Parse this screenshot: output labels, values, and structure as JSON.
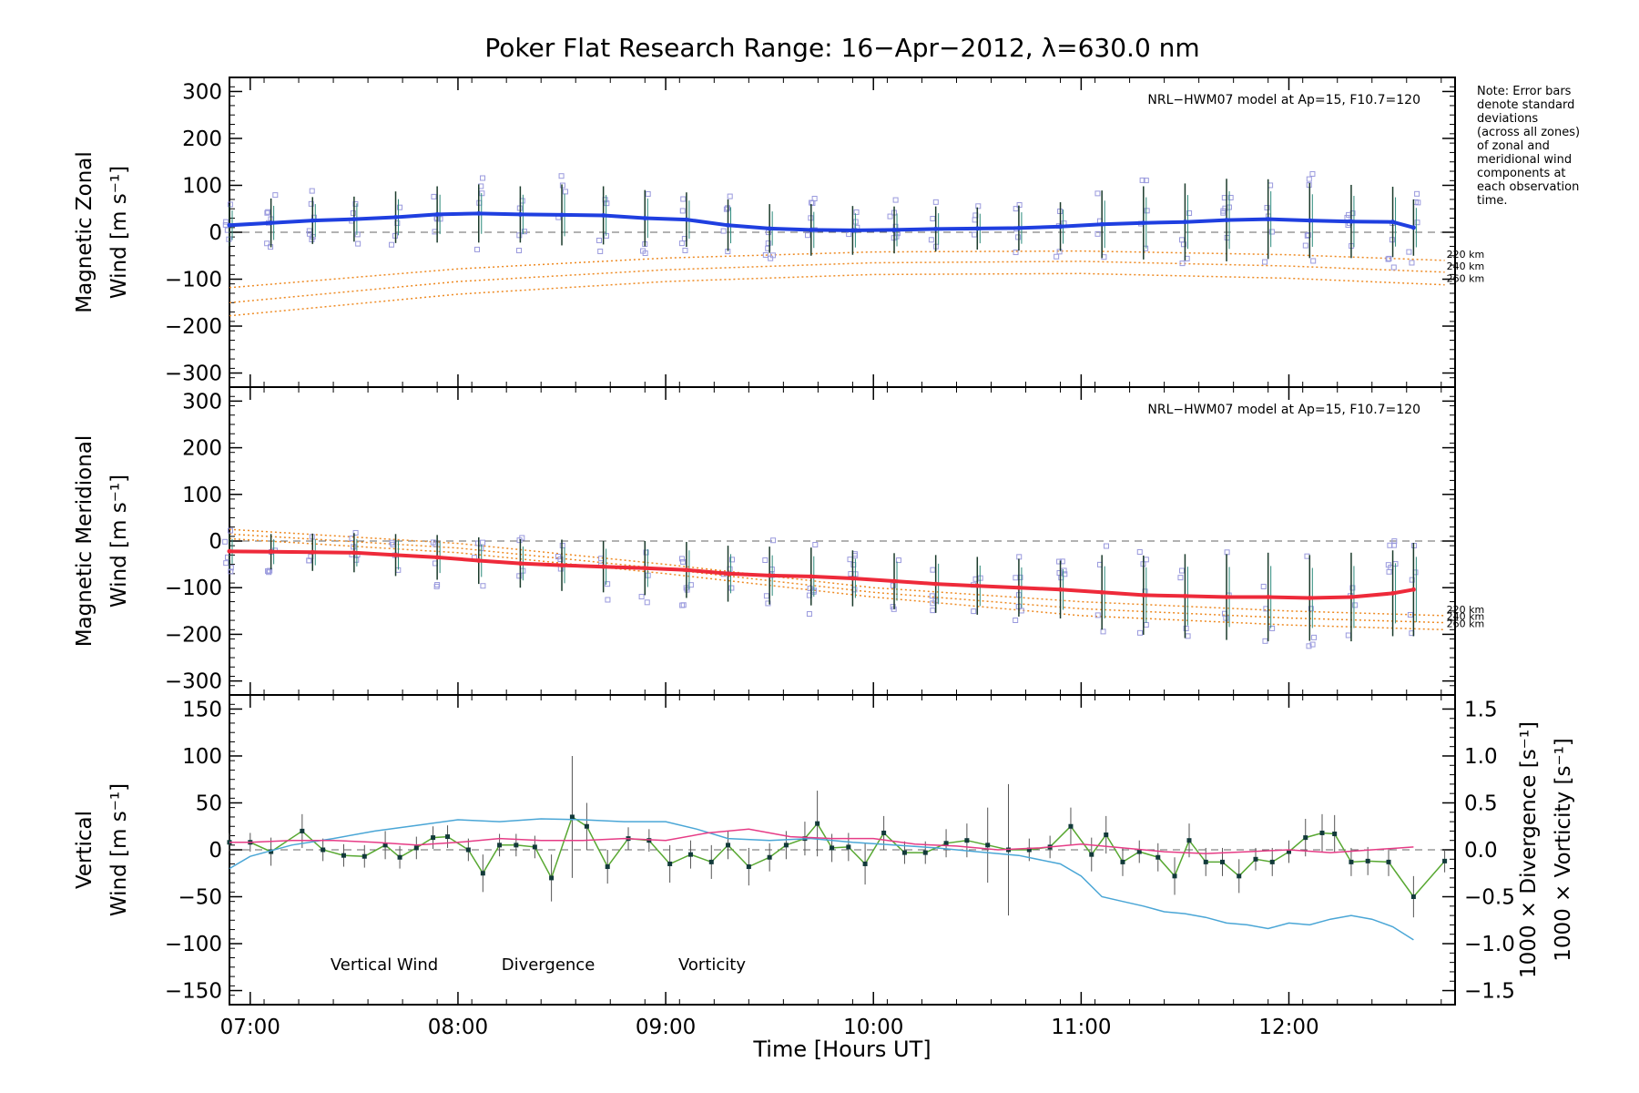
{
  "title": "Poker Flat Research Range: 16−Apr−2012, λ=630.0 nm",
  "note_lines": [
    "Note: Error bars",
    "denote standard",
    "deviations",
    "(across all zones)",
    "of zonal and",
    "meridional wind",
    "components at",
    "each observation",
    "time."
  ],
  "xlabel": "Time [Hours UT]",
  "xticks": [
    {
      "t": 7.0,
      "label": "07:00"
    },
    {
      "t": 8.0,
      "label": "08:00"
    },
    {
      "t": 9.0,
      "label": "09:00"
    },
    {
      "t": 10.0,
      "label": "10:00"
    },
    {
      "t": 11.0,
      "label": "11:00"
    },
    {
      "t": 12.0,
      "label": "12:00"
    }
  ],
  "colors": {
    "zonal": "#1f3fe0",
    "meridional": "#ee2a3a",
    "vertical": "#58a832",
    "divergence": "#4aa6d6",
    "vorticity": "#e63c86",
    "model": "#ee8a22",
    "samples": "#9999dd"
  },
  "chart_data": [
    {
      "type": "line",
      "id": "zonal",
      "ylabel_lines": [
        "Magnetic Zonal",
        "Wind [m s⁻¹]"
      ],
      "ylim": [
        -330,
        330
      ],
      "yticks": [
        -300,
        -200,
        -100,
        0,
        100,
        200,
        300
      ],
      "xlim": [
        6.9,
        12.8
      ],
      "model_label": "NRL−HWM07 model at Ap=15, F10.7=120",
      "model_curves": [
        {
          "name": "220 km",
          "x": [
            6.9,
            8.0,
            9.0,
            10.0,
            11.0,
            12.0,
            12.75
          ],
          "values": [
            -118,
            -78,
            -55,
            -42,
            -40,
            -48,
            -60
          ]
        },
        {
          "name": "240 km",
          "x": [
            6.9,
            8.0,
            9.0,
            10.0,
            11.0,
            12.0,
            12.75
          ],
          "values": [
            -150,
            -105,
            -80,
            -65,
            -62,
            -72,
            -85
          ]
        },
        {
          "name": "260 km",
          "x": [
            6.9,
            8.0,
            9.0,
            10.0,
            11.0,
            12.0,
            12.75
          ],
          "values": [
            -178,
            -132,
            -105,
            -90,
            -88,
            -98,
            -112
          ]
        }
      ],
      "series": [
        {
          "name": "zonal",
          "x": [
            6.9,
            7.1,
            7.3,
            7.5,
            7.7,
            7.9,
            8.1,
            8.3,
            8.5,
            8.7,
            8.9,
            9.1,
            9.3,
            9.5,
            9.7,
            9.9,
            10.1,
            10.3,
            10.5,
            10.7,
            10.9,
            11.1,
            11.3,
            11.5,
            11.7,
            11.9,
            12.1,
            12.3,
            12.5,
            12.6
          ],
          "values": [
            15,
            20,
            25,
            28,
            32,
            38,
            40,
            38,
            37,
            36,
            30,
            27,
            15,
            8,
            5,
            4,
            5,
            7,
            8,
            9,
            12,
            17,
            20,
            22,
            26,
            28,
            25,
            23,
            22,
            10
          ],
          "errors": [
            45,
            52,
            50,
            48,
            55,
            60,
            62,
            60,
            65,
            62,
            60,
            58,
            55,
            52,
            55,
            52,
            50,
            48,
            45,
            48,
            52,
            72,
            78,
            82,
            88,
            85,
            80,
            78,
            75,
            60
          ]
        }
      ]
    },
    {
      "type": "line",
      "id": "meridional",
      "ylabel_lines": [
        "Magnetic Meridional",
        "Wind [m s⁻¹]"
      ],
      "ylim": [
        -330,
        330
      ],
      "yticks": [
        -300,
        -200,
        -100,
        0,
        100,
        200,
        300
      ],
      "xlim": [
        6.9,
        12.8
      ],
      "model_label": "NRL−HWM07 model at Ap=15, F10.7=120",
      "model_curves": [
        {
          "name": "220 km",
          "x": [
            6.9,
            8.0,
            9.0,
            10.0,
            11.0,
            12.0,
            12.75
          ],
          "values": [
            25,
            -5,
            -50,
            -100,
            -130,
            -150,
            -160
          ]
        },
        {
          "name": "240 km",
          "x": [
            6.9,
            8.0,
            9.0,
            10.0,
            11.0,
            12.0,
            12.75
          ],
          "values": [
            15,
            -15,
            -60,
            -110,
            -145,
            -165,
            -175
          ]
        },
        {
          "name": "260 km",
          "x": [
            6.9,
            8.0,
            9.0,
            10.0,
            11.0,
            12.0,
            12.75
          ],
          "values": [
            5,
            -25,
            -70,
            -120,
            -160,
            -180,
            -190
          ]
        }
      ],
      "series": [
        {
          "name": "meridional",
          "x": [
            6.9,
            7.1,
            7.3,
            7.5,
            7.7,
            7.9,
            8.1,
            8.3,
            8.5,
            8.7,
            8.9,
            9.1,
            9.3,
            9.5,
            9.7,
            9.9,
            10.1,
            10.3,
            10.5,
            10.7,
            10.9,
            11.1,
            11.3,
            11.5,
            11.7,
            11.9,
            12.1,
            12.3,
            12.5,
            12.6
          ],
          "values": [
            -22,
            -23,
            -24,
            -25,
            -30,
            -35,
            -42,
            -48,
            -52,
            -55,
            -58,
            -62,
            -70,
            -74,
            -76,
            -80,
            -86,
            -92,
            -96,
            -100,
            -104,
            -110,
            -116,
            -118,
            -120,
            -120,
            -122,
            -120,
            -112,
            -104
          ],
          "errors": [
            38,
            38,
            40,
            42,
            45,
            48,
            50,
            52,
            55,
            55,
            58,
            60,
            60,
            62,
            62,
            60,
            60,
            62,
            62,
            62,
            62,
            80,
            85,
            90,
            92,
            95,
            92,
            95,
            92,
            100
          ]
        }
      ]
    },
    {
      "type": "line",
      "id": "vertical",
      "ylabel_lines": [
        "Vertical",
        "Wind [m s⁻¹]"
      ],
      "right_ylabel_divergence": "1000 × Divergence [s⁻¹]",
      "right_ylabel_vorticity": "1000 × Vorticity [s⁻¹]",
      "ylim": [
        -165,
        165
      ],
      "yticks": [
        -150,
        -100,
        -50,
        0,
        50,
        100,
        150
      ],
      "y2lim": [
        -1.65,
        1.65
      ],
      "y2ticks": [
        -1.5,
        -1.0,
        -0.5,
        0.0,
        0.5,
        1.0,
        1.5
      ],
      "y2ticklabels": [
        "−1.5",
        "−1.0",
        "−0.5",
        "0.0",
        "0.5",
        "1.0",
        "1.5"
      ],
      "xlim": [
        6.9,
        12.8
      ],
      "legend": [
        {
          "name": "Vertical Wind",
          "key": "vertical"
        },
        {
          "name": "Divergence",
          "key": "divergence"
        },
        {
          "name": "Vorticity",
          "key": "vorticity"
        }
      ],
      "series": [
        {
          "name": "Vertical Wind",
          "key": "vertical",
          "axis": "left",
          "x": [
            6.9,
            7.0,
            7.1,
            7.25,
            7.35,
            7.45,
            7.55,
            7.65,
            7.72,
            7.8,
            7.88,
            7.95,
            8.05,
            8.12,
            8.2,
            8.28,
            8.37,
            8.45,
            8.55,
            8.62,
            8.72,
            8.82,
            8.92,
            9.02,
            9.12,
            9.22,
            9.3,
            9.4,
            9.5,
            9.58,
            9.67,
            9.73,
            9.8,
            9.88,
            9.96,
            10.05,
            10.15,
            10.25,
            10.35,
            10.45,
            10.55,
            10.65,
            10.75,
            10.85,
            10.95,
            11.05,
            11.12,
            11.2,
            11.28,
            11.37,
            11.45,
            11.52,
            11.6,
            11.68,
            11.76,
            11.84,
            11.92,
            12.0,
            12.08,
            12.16,
            12.22,
            12.3,
            12.38,
            12.48,
            12.6,
            12.75
          ],
          "values": [
            8,
            8,
            -2,
            20,
            0,
            -6,
            -7,
            5,
            -8,
            2,
            13,
            14,
            0,
            -25,
            5,
            5,
            3,
            -30,
            35,
            25,
            -18,
            12,
            10,
            -15,
            -5,
            -13,
            5,
            -18,
            -8,
            5,
            12,
            28,
            2,
            3,
            -15,
            18,
            -3,
            -3,
            7,
            10,
            5,
            0,
            0,
            3,
            25,
            -5,
            16,
            -13,
            -2,
            -8,
            -28,
            10,
            -13,
            -13,
            -28,
            -10,
            -13,
            -2,
            13,
            18,
            17,
            -13,
            -12,
            -13,
            -50,
            -12
          ],
          "errors": [
            10,
            10,
            15,
            18,
            12,
            12,
            12,
            15,
            12,
            12,
            12,
            12,
            12,
            20,
            12,
            12,
            12,
            25,
            65,
            25,
            18,
            12,
            12,
            20,
            15,
            18,
            15,
            20,
            15,
            15,
            18,
            35,
            15,
            15,
            22,
            18,
            12,
            12,
            15,
            18,
            40,
            70,
            12,
            12,
            20,
            18,
            20,
            15,
            12,
            15,
            20,
            18,
            15,
            15,
            18,
            12,
            15,
            12,
            20,
            20,
            20,
            15,
            15,
            15,
            22,
            12
          ]
        },
        {
          "name": "Divergence",
          "key": "divergence",
          "axis": "right",
          "x": [
            6.9,
            7.0,
            7.2,
            7.4,
            7.6,
            7.8,
            8.0,
            8.2,
            8.4,
            8.6,
            8.8,
            9.0,
            9.15,
            9.3,
            9.5,
            9.7,
            9.9,
            10.1,
            10.3,
            10.5,
            10.7,
            10.9,
            11.0,
            11.1,
            11.2,
            11.3,
            11.4,
            11.5,
            11.6,
            11.7,
            11.8,
            11.9,
            12.0,
            12.1,
            12.2,
            12.3,
            12.4,
            12.5,
            12.6
          ],
          "values": [
            -0.2,
            -0.07,
            0.05,
            0.12,
            0.2,
            0.26,
            0.32,
            0.3,
            0.33,
            0.32,
            0.3,
            0.3,
            0.22,
            0.12,
            0.1,
            0.12,
            0.08,
            0.05,
            0.02,
            -0.02,
            -0.06,
            -0.15,
            -0.28,
            -0.5,
            -0.55,
            -0.6,
            -0.66,
            -0.68,
            -0.72,
            -0.78,
            -0.8,
            -0.84,
            -0.78,
            -0.8,
            -0.74,
            -0.7,
            -0.74,
            -0.82,
            -0.96
          ]
        },
        {
          "name": "Vorticity",
          "key": "vorticity",
          "axis": "right",
          "x": [
            6.9,
            7.0,
            7.2,
            7.4,
            7.6,
            7.8,
            8.0,
            8.2,
            8.4,
            8.6,
            8.8,
            9.0,
            9.2,
            9.4,
            9.6,
            9.8,
            10.0,
            10.2,
            10.4,
            10.6,
            10.8,
            11.0,
            11.2,
            11.4,
            11.6,
            11.8,
            12.0,
            12.2,
            12.4,
            12.6
          ],
          "values": [
            0.08,
            0.08,
            0.1,
            0.1,
            0.08,
            0.05,
            0.08,
            0.12,
            0.1,
            0.1,
            0.12,
            0.1,
            0.18,
            0.22,
            0.14,
            0.12,
            0.12,
            0.06,
            0.04,
            0.0,
            0.02,
            0.06,
            0.02,
            -0.02,
            -0.04,
            -0.02,
            0.0,
            -0.03,
            0.0,
            0.03
          ]
        }
      ]
    }
  ]
}
